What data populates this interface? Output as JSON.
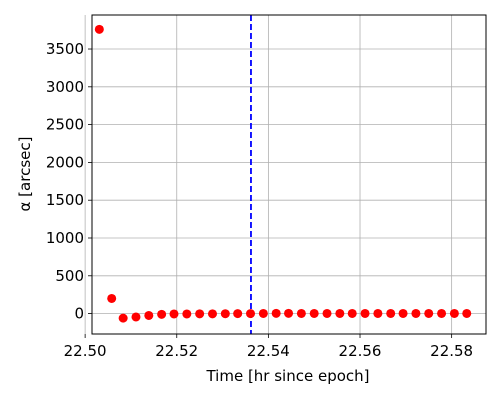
{
  "chart_data": {
    "type": "scatter",
    "title": "",
    "xlabel": "Time [hr since epoch]",
    "ylabel": "α [arcsec]",
    "xlim": [
      22.5015,
      22.5875
    ],
    "ylim": [
      -270,
      3950
    ],
    "x_ticks": [
      "22.50",
      "22.52",
      "22.54",
      "22.56",
      "22.58"
    ],
    "x_tick_values": [
      22.5,
      22.52,
      22.54,
      22.56,
      22.58
    ],
    "y_ticks": [
      "0",
      "500",
      "1000",
      "1500",
      "2000",
      "2500",
      "3000",
      "3500"
    ],
    "y_tick_values": [
      0,
      500,
      1000,
      1500,
      2000,
      2500,
      3000,
      3500
    ],
    "grid": true,
    "marker_color": "#ff0000",
    "vline": {
      "x": 22.5362,
      "color": "#0000ff",
      "style": "dashed"
    },
    "series": [
      {
        "x": [
          22.5031,
          22.5058,
          22.5083,
          22.5111,
          22.5139,
          22.5167,
          22.5194,
          22.5222,
          22.525,
          22.5278,
          22.5306,
          22.5333,
          22.5361,
          22.5389,
          22.5417,
          22.5444,
          22.5472,
          22.55,
          22.5528,
          22.5556,
          22.5583,
          22.5611,
          22.5639,
          22.5667,
          22.5694,
          22.5722,
          22.575,
          22.5778,
          22.5806,
          22.5833
        ],
        "values": [
          3760,
          200,
          -60,
          -45,
          -25,
          -10,
          -5,
          -5,
          -3,
          -3,
          -2,
          0,
          0,
          2,
          3,
          3,
          2,
          2,
          2,
          2,
          2,
          2,
          2,
          2,
          2,
          2,
          2,
          2,
          2,
          2
        ]
      }
    ]
  }
}
